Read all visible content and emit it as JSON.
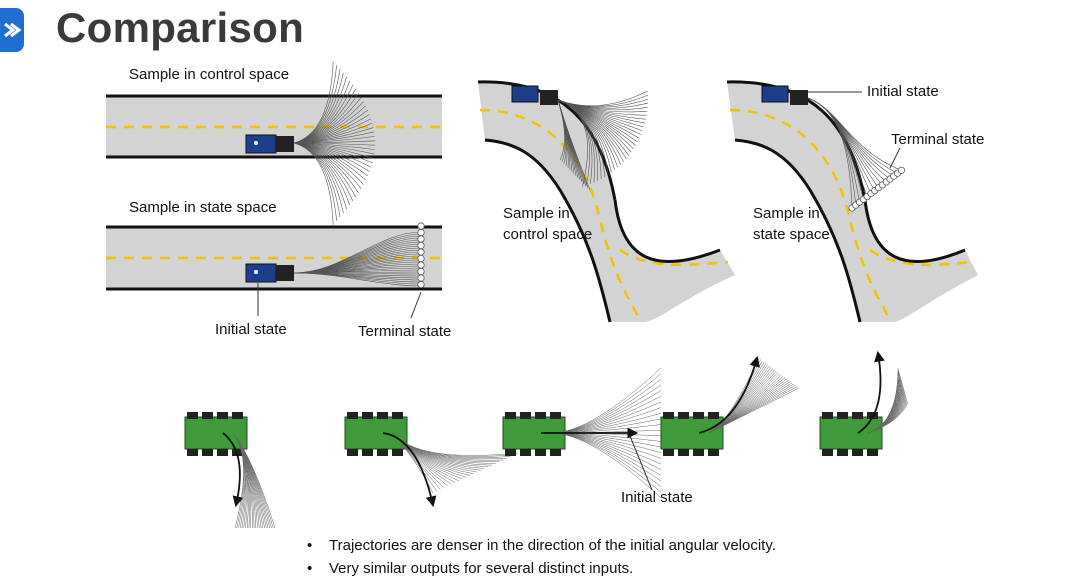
{
  "header": {
    "title": "Comparison",
    "logo_icon": "brand-logo-icon"
  },
  "panel_straight": {
    "label_control": "Sample in control space",
    "label_state": "Sample in state space",
    "label_initial": "Initial state",
    "label_terminal": "Terminal state"
  },
  "panel_curve_control": {
    "label_line1": "Sample in",
    "label_line2": "control space"
  },
  "panel_curve_state": {
    "label_line1": "Sample in",
    "label_line2": "state space",
    "label_initial": "Initial state",
    "label_terminal": "Terminal state"
  },
  "panel_robots": {
    "label_initial": "Initial state"
  },
  "bullets": [
    "Trajectories are denser in the direction of the initial angular velocity.",
    "Very similar outputs for several distinct inputs."
  ],
  "colors": {
    "accent": "#1f6fd1",
    "road": "#d3d3d3",
    "lane": "#f2c200",
    "robot": "#3f9a3a"
  }
}
